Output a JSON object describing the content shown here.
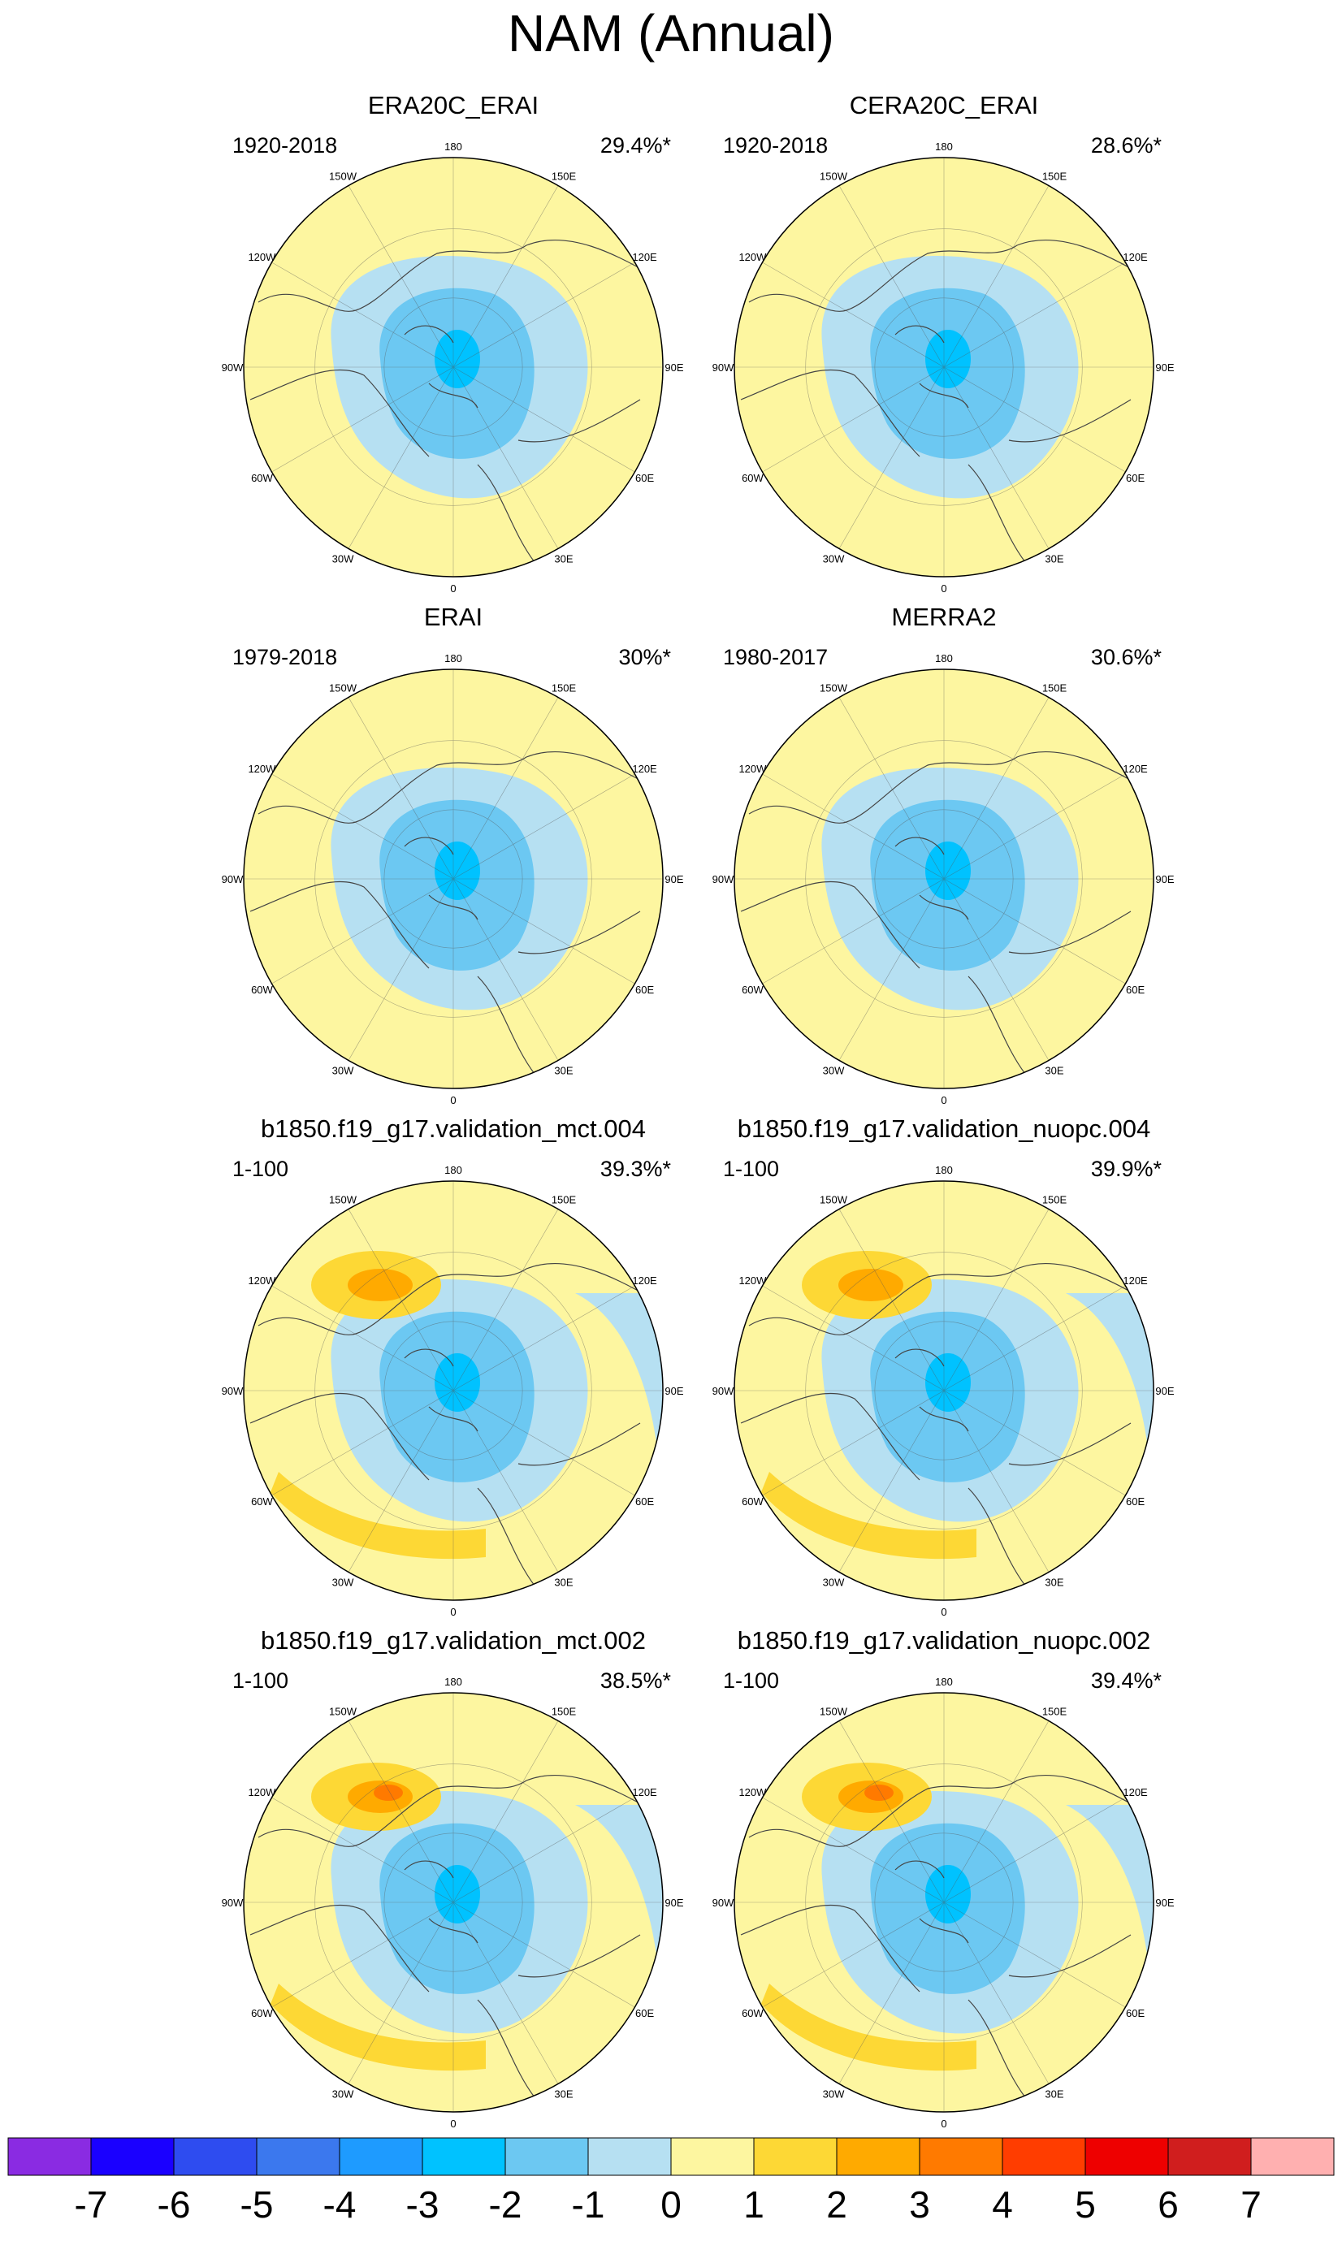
{
  "chart_data": {
    "type": "polar-stereographic contour maps with shared colorbar",
    "title": "NAM (Annual)",
    "lon_labels": [
      "180",
      "150E",
      "120E",
      "90E",
      "60E",
      "30E",
      "0",
      "30W",
      "60W",
      "90W",
      "120W",
      "150W"
    ],
    "panels": [
      {
        "name": "ERA20C_ERAI",
        "period": "1920-2018",
        "variance": "29.4%*",
        "min_value": -3,
        "max_value": 0
      },
      {
        "name": "CERA20C_ERAI",
        "period": "1920-2018",
        "variance": "28.6%*",
        "min_value": -3,
        "max_value": 0
      },
      {
        "name": "ERAI",
        "period": "1979-2018",
        "variance": "30%*",
        "min_value": -3,
        "max_value": 0
      },
      {
        "name": "MERRA2",
        "period": "1980-2017",
        "variance": "30.6%*",
        "min_value": -3,
        "max_value": 0
      },
      {
        "name": "b1850.f19_g17.validation_mct.004",
        "period": "1-100",
        "variance": "39.3%*",
        "min_value": -3,
        "max_value": 2
      },
      {
        "name": "b1850.f19_g17.validation_nuopc.004",
        "period": "1-100",
        "variance": "39.9%*",
        "min_value": -3,
        "max_value": 2
      },
      {
        "name": "b1850.f19_g17.validation_mct.002",
        "period": "1-100",
        "variance": "38.5%*",
        "min_value": -3,
        "max_value": 3
      },
      {
        "name": "b1850.f19_g17.validation_nuopc.002",
        "period": "1-100",
        "variance": "39.4%*",
        "min_value": -3,
        "max_value": 3
      }
    ],
    "colorbar": {
      "tick_labels": [
        "-7",
        "-6",
        "-5",
        "-4",
        "-3",
        "-2",
        "-1",
        "0",
        "1",
        "2",
        "3",
        "4",
        "5",
        "6",
        "7"
      ],
      "colors": [
        "#8a2be2",
        "#1a00ff",
        "#2e4cf0",
        "#3b78ee",
        "#1e9bff",
        "#00c2ff",
        "#6cc8f2",
        "#b6e0f2",
        "#fdf6a0",
        "#fdd835",
        "#ffaa00",
        "#ff7a00",
        "#ff3d00",
        "#ee0000",
        "#d01e1e",
        "#ffb0b0"
      ]
    }
  }
}
